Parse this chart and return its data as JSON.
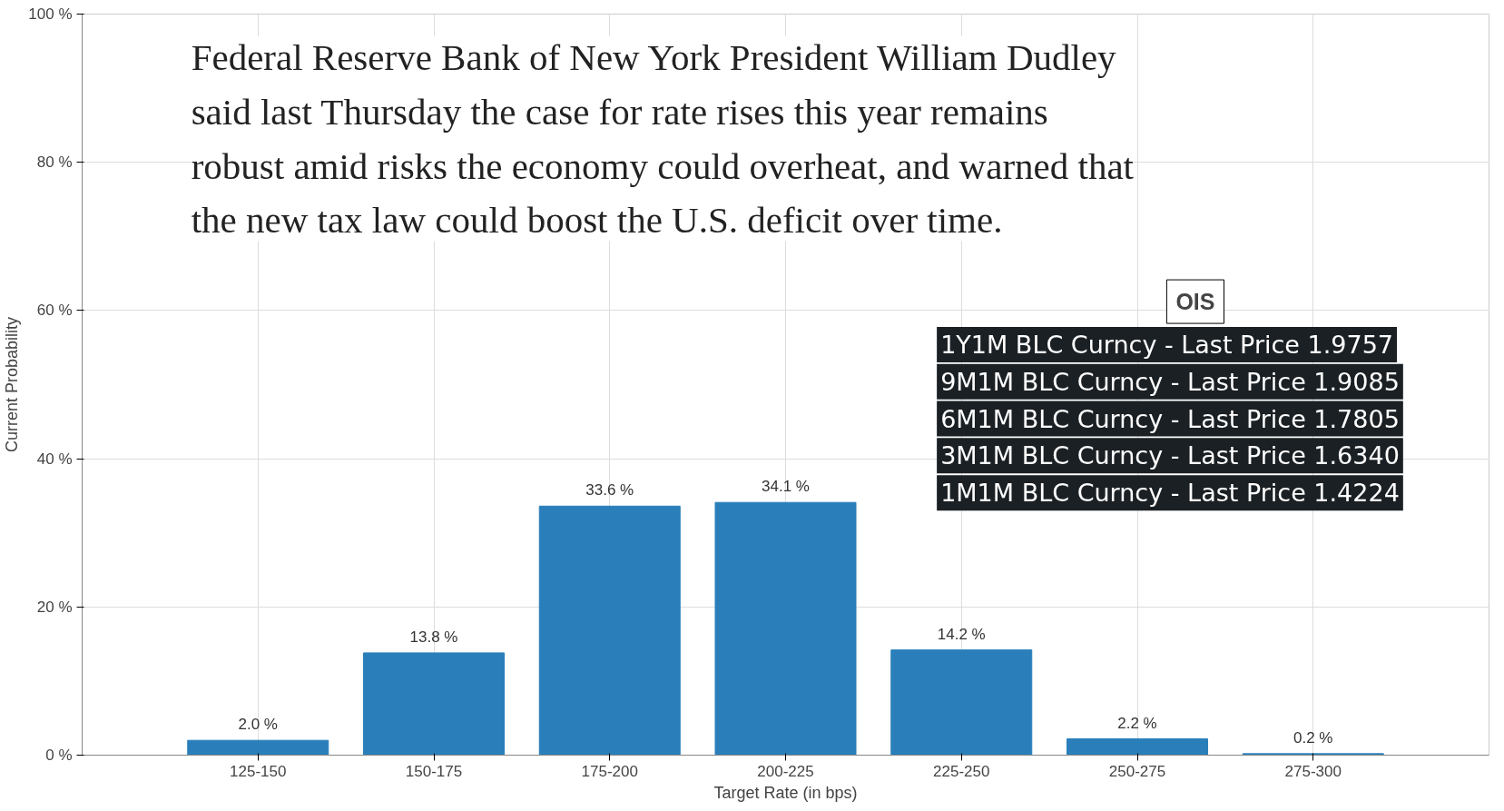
{
  "chart_data": {
    "type": "bar",
    "categories": [
      "125-150",
      "150-175",
      "175-200",
      "200-225",
      "225-250",
      "250-275",
      "275-300"
    ],
    "values": [
      2.0,
      13.8,
      33.6,
      34.1,
      14.2,
      2.2,
      0.2
    ],
    "value_labels": [
      "2.0 %",
      "13.8 %",
      "33.6 %",
      "34.1 %",
      "14.2 %",
      "2.2 %",
      "0.2 %"
    ],
    "color": "#2a7fba",
    "xlabel": "Target Rate (in bps)",
    "ylabel": "Current Probability",
    "ylim": [
      0,
      100
    ],
    "yticks": [
      {
        "value": 0,
        "label": "0 %"
      },
      {
        "value": 20,
        "label": "20 %"
      },
      {
        "value": 40,
        "label": "40 %"
      },
      {
        "value": 60,
        "label": "60 %"
      },
      {
        "value": 80,
        "label": "80 %"
      },
      {
        "value": 100,
        "label": "100 %"
      }
    ],
    "grid": true,
    "annotations": [
      "Federal Reserve Bank of New York President William Dudley\nsaid last Thursday the case for rate rises this year remains\nrobust amid risks the economy could overheat, and warned that\nthe new tax law could boost the U.S. deficit over time.",
      "OIS",
      "1Y1M BLC Curncy - Last Price 1.9757",
      "9M1M BLC Curncy - Last Price 1.9085",
      "6M1M BLC Curncy - Last Price 1.7805",
      "3M1M BLC Curncy - Last Price 1.6340",
      "1M1M BLC Curncy - Last Price 1.4224"
    ]
  }
}
